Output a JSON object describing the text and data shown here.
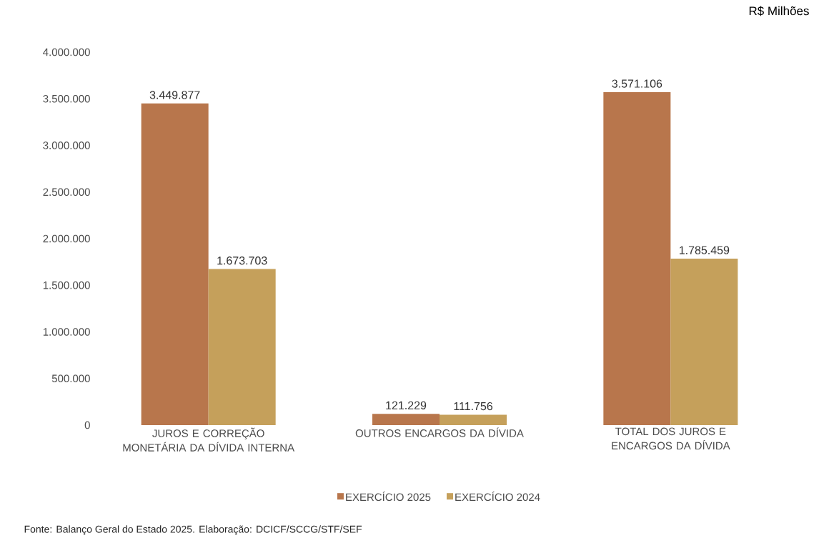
{
  "chart_data": {
    "type": "bar",
    "subtitle": "R$ Milhões",
    "categories": [
      "JUROS E CORREÇÃO MONETÁRIA DA DÍVIDA INTERNA",
      "OUTROS ENCARGOS DA DÍVIDA",
      "TOTAL DOS JUROS E ENCARGOS DA DÍVIDA"
    ],
    "series": [
      {
        "name": "EXERCÍCIO 2025",
        "color": "#b8764c",
        "values": [
          3449877,
          121229,
          3571106
        ],
        "value_labels": [
          "3.449.877",
          "121.229",
          "3.571.106"
        ]
      },
      {
        "name": "EXERCÍCIO 2024",
        "color": "#c5a05b",
        "values": [
          1673703,
          111756,
          1785459
        ],
        "value_labels": [
          "1.673.703",
          "111.756",
          "1.785.459"
        ]
      }
    ],
    "ylim": [
      0,
      4000000
    ],
    "yticks": [
      {
        "value": 0,
        "label": "0"
      },
      {
        "value": 500000,
        "label": "500.000"
      },
      {
        "value": 1000000,
        "label": "1.000.000"
      },
      {
        "value": 1500000,
        "label": "1.500.000"
      },
      {
        "value": 2000000,
        "label": "2.000.000"
      },
      {
        "value": 2500000,
        "label": "2.500.000"
      },
      {
        "value": 3000000,
        "label": "3.000.000"
      },
      {
        "value": 3500000,
        "label": "3.500.000"
      },
      {
        "value": 4000000,
        "label": "4.000.000"
      }
    ],
    "grid": false,
    "legend": "bottom",
    "annotations": [
      "Fonte: Balanço Geral do Estado 2025. Elaboração: DCICF/SCCG/STF/SEF"
    ]
  }
}
